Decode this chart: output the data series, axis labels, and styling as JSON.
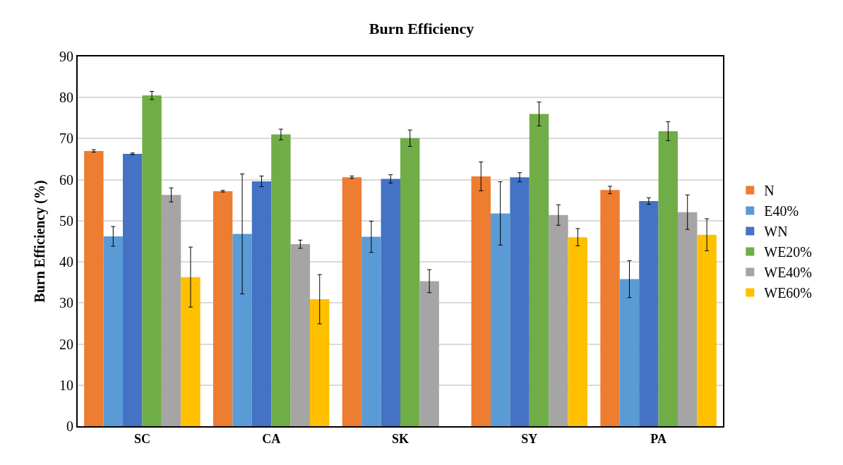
{
  "chart_data": {
    "type": "bar",
    "title": "Burn Efficiency",
    "ylabel": "Burn Efficiency (%)",
    "categories": [
      "SC",
      "CA",
      "SK",
      "SY",
      "PA"
    ],
    "series": [
      {
        "name": "N",
        "color": "#ed7d31",
        "values": [
          67.0,
          57.2,
          60.6,
          60.8,
          57.5
        ],
        "errors": [
          0.3,
          0.2,
          0.3,
          3.5,
          0.9
        ]
      },
      {
        "name": "E40%",
        "color": "#5b9bd5",
        "values": [
          46.2,
          46.8,
          46.1,
          51.8,
          35.8
        ],
        "errors": [
          2.4,
          14.6,
          3.8,
          7.7,
          4.5
        ]
      },
      {
        "name": "WN",
        "color": "#4472c4",
        "values": [
          66.3,
          59.6,
          60.2,
          60.6,
          54.8
        ],
        "errors": [
          0.2,
          1.3,
          1.0,
          1.1,
          0.8
        ]
      },
      {
        "name": "WE20%",
        "color": "#70ad47",
        "values": [
          80.5,
          71.0,
          70.1,
          76.0,
          71.8
        ],
        "errors": [
          1.0,
          1.3,
          2.0,
          2.9,
          2.3
        ]
      },
      {
        "name": "WE40%",
        "color": "#a5a5a5",
        "values": [
          56.3,
          44.3,
          35.3,
          51.4,
          52.1
        ],
        "errors": [
          1.7,
          1.0,
          2.8,
          2.5,
          4.2
        ]
      },
      {
        "name": "WE60%",
        "color": "#ffc000",
        "values": [
          36.3,
          30.9,
          null,
          46.0,
          46.6
        ],
        "errors": [
          7.3,
          6.0,
          null,
          2.1,
          3.9
        ]
      }
    ],
    "ylim": [
      0,
      90
    ],
    "yticks": [
      0,
      10,
      20,
      30,
      40,
      50,
      60,
      70,
      80,
      90
    ],
    "grid": "y",
    "legend": "right"
  }
}
